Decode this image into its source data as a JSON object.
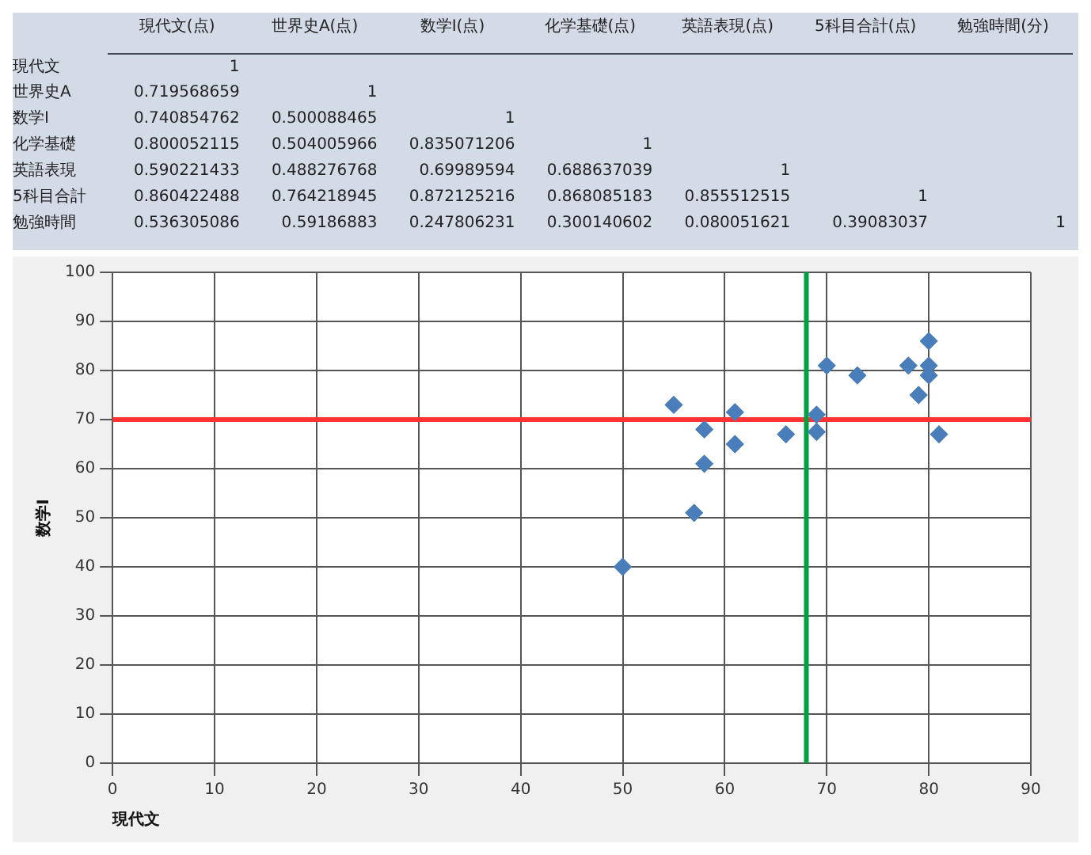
{
  "chart_data": [
    {
      "type": "heatmap",
      "categories": [
        "現代文(点)",
        "世界史A(点)",
        "数学Ⅰ(点)",
        "化学基礎(点)",
        "英語表現(点)",
        "5科目合計(点)",
        "勉強時間(分)"
      ],
      "y_categories": [
        "現代文",
        "世界史A",
        "数学Ⅰ",
        "化学基礎",
        "英語表現",
        "5科目合計",
        "勉強時間"
      ],
      "cells": [
        [
          1,
          null,
          null,
          null,
          null,
          null,
          null
        ],
        [
          0.719568659,
          1,
          null,
          null,
          null,
          null,
          null
        ],
        [
          0.740854762,
          0.500088465,
          1,
          null,
          null,
          null,
          null
        ],
        [
          0.800052115,
          0.504005966,
          0.835071206,
          1,
          null,
          null,
          null
        ],
        [
          0.590221433,
          0.488276768,
          0.69989594,
          0.688637039,
          1,
          null,
          null
        ],
        [
          0.860422488,
          0.764218945,
          0.872125216,
          0.868085183,
          0.855512515,
          1,
          null
        ],
        [
          0.536305086,
          0.59186883,
          0.247806231,
          0.300140602,
          0.080051621,
          0.39083037,
          1
        ]
      ],
      "data_labels": true
    },
    {
      "type": "scatter",
      "xlabel": "現代文",
      "ylabel": "数学Ⅰ",
      "x": [
        50,
        55,
        61,
        58,
        61,
        58,
        57,
        66,
        69,
        69,
        70,
        73,
        78,
        80,
        80,
        80,
        79,
        81
      ],
      "values": [
        40,
        73,
        71.5,
        68,
        65,
        61,
        51,
        67,
        71,
        67.5,
        81,
        79,
        81,
        86,
        81,
        79,
        75,
        67
      ],
      "color": "#4a7ebb",
      "marker": "diamond",
      "xlim": [
        0,
        90
      ],
      "xticks": [
        0,
        10,
        20,
        30,
        40,
        50,
        60,
        70,
        80,
        90
      ],
      "ylim": [
        0,
        100
      ],
      "yticks": [
        0,
        10,
        20,
        30,
        40,
        50,
        60,
        70,
        80,
        90,
        100
      ],
      "grid": true,
      "legend": false,
      "ref_lines": [
        {
          "axis": "y",
          "value": 70,
          "color": "#ff3333"
        },
        {
          "axis": "x",
          "value": 68,
          "color": "#00a040"
        }
      ]
    }
  ]
}
